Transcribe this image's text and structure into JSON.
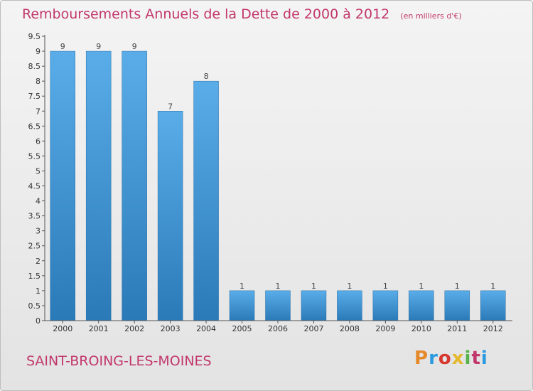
{
  "chart_data": {
    "type": "bar",
    "title": "Remboursements Annuels de la Dette de 2000 à 2012",
    "subtitle": "(en milliers d'€)",
    "categories": [
      "2000",
      "2001",
      "2002",
      "2003",
      "2004",
      "2005",
      "2006",
      "2007",
      "2008",
      "2009",
      "2010",
      "2011",
      "2012"
    ],
    "values": [
      9,
      9,
      9,
      7,
      8,
      1,
      1,
      1,
      1,
      1,
      1,
      1,
      1
    ],
    "data_labels": [
      "9",
      "9",
      "9",
      "7",
      "8",
      "1",
      "1",
      "1",
      "1",
      "1",
      "1",
      "1",
      "1"
    ],
    "ylim": [
      0,
      9.5
    ],
    "yticks": [
      "0",
      "0.5",
      "1",
      "1.5",
      "2",
      "2.5",
      "3",
      "3.5",
      "4",
      "4.5",
      "5",
      "5.5",
      "6",
      "6.5",
      "7",
      "7.5",
      "8",
      "8.5",
      "9",
      "9.5"
    ],
    "grid": false,
    "colors": {
      "bar_light": "#5aade8",
      "bar_dark": "#2a7ab8",
      "title": "#c2376b"
    }
  },
  "footer": {
    "commune": "SAINT-BROING-LES-MOINES",
    "logo": "Proxiti",
    "logo_colors": [
      "#e5892b",
      "#2b9ae0",
      "#d6382f",
      "#e5b72b",
      "#59b34a",
      "#c2376b",
      "#2b9ae0"
    ]
  }
}
